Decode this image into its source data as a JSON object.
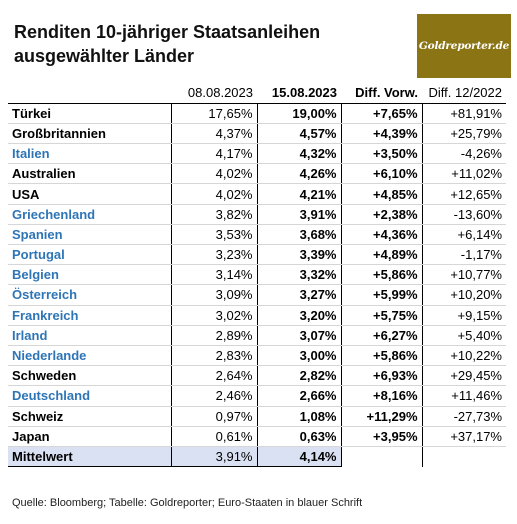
{
  "title_line1": "Renditen 10-jähriger Staatsanleihen",
  "title_line2": "ausgewählter Länder",
  "logo_text": "Goldreporter.de",
  "colors": {
    "euro_text": "#2e75b6",
    "logo_bg": "#8a7413",
    "mean_row_bg": "#d9e1f2"
  },
  "headers": [
    "",
    "08.08.2023",
    "15.08.2023",
    "Diff. Vorw.",
    "Diff. 12/2022"
  ],
  "rows": [
    {
      "country": "Türkei",
      "euro": false,
      "v1": "17,65%",
      "v2": "19,00%",
      "d1": "+7,65%",
      "d2": "+81,91%"
    },
    {
      "country": "Großbritannien",
      "euro": false,
      "v1": "4,37%",
      "v2": "4,57%",
      "d1": "+4,39%",
      "d2": "+25,79%"
    },
    {
      "country": "Italien",
      "euro": true,
      "v1": "4,17%",
      "v2": "4,32%",
      "d1": "+3,50%",
      "d2": "-4,26%"
    },
    {
      "country": "Australien",
      "euro": false,
      "v1": "4,02%",
      "v2": "4,26%",
      "d1": "+6,10%",
      "d2": "+11,02%"
    },
    {
      "country": "USA",
      "euro": false,
      "v1": "4,02%",
      "v2": "4,21%",
      "d1": "+4,85%",
      "d2": "+12,65%"
    },
    {
      "country": "Griechenland",
      "euro": true,
      "v1": "3,82%",
      "v2": "3,91%",
      "d1": "+2,38%",
      "d2": "-13,60%"
    },
    {
      "country": "Spanien",
      "euro": true,
      "v1": "3,53%",
      "v2": "3,68%",
      "d1": "+4,36%",
      "d2": "+6,14%"
    },
    {
      "country": "Portugal",
      "euro": true,
      "v1": "3,23%",
      "v2": "3,39%",
      "d1": "+4,89%",
      "d2": "-1,17%"
    },
    {
      "country": "Belgien",
      "euro": true,
      "v1": "3,14%",
      "v2": "3,32%",
      "d1": "+5,86%",
      "d2": "+10,77%"
    },
    {
      "country": "Österreich",
      "euro": true,
      "v1": "3,09%",
      "v2": "3,27%",
      "d1": "+5,99%",
      "d2": "+10,20%"
    },
    {
      "country": "Frankreich",
      "euro": true,
      "v1": "3,02%",
      "v2": "3,20%",
      "d1": "+5,75%",
      "d2": "+9,15%"
    },
    {
      "country": "Irland",
      "euro": true,
      "v1": "2,89%",
      "v2": "3,07%",
      "d1": "+6,27%",
      "d2": "+5,40%"
    },
    {
      "country": "Niederlande",
      "euro": true,
      "v1": "2,83%",
      "v2": "3,00%",
      "d1": "+5,86%",
      "d2": "+10,22%"
    },
    {
      "country": "Schweden",
      "euro": false,
      "v1": "2,64%",
      "v2": "2,82%",
      "d1": "+6,93%",
      "d2": "+29,45%"
    },
    {
      "country": "Deutschland",
      "euro": true,
      "v1": "2,46%",
      "v2": "2,66%",
      "d1": "+8,16%",
      "d2": "+11,46%"
    },
    {
      "country": "Schweiz",
      "euro": false,
      "v1": "0,97%",
      "v2": "1,08%",
      "d1": "+11,29%",
      "d2": "-27,73%"
    },
    {
      "country": "Japan",
      "euro": false,
      "v1": "0,61%",
      "v2": "0,63%",
      "d1": "+3,95%",
      "d2": "+37,17%"
    }
  ],
  "mean_row": {
    "label": "Mittelwert",
    "v1": "3,91%",
    "v2": "4,14%"
  },
  "footer": "Quelle: Bloomberg; Tabelle: Goldreporter; Euro-Staaten in blauer Schrift"
}
